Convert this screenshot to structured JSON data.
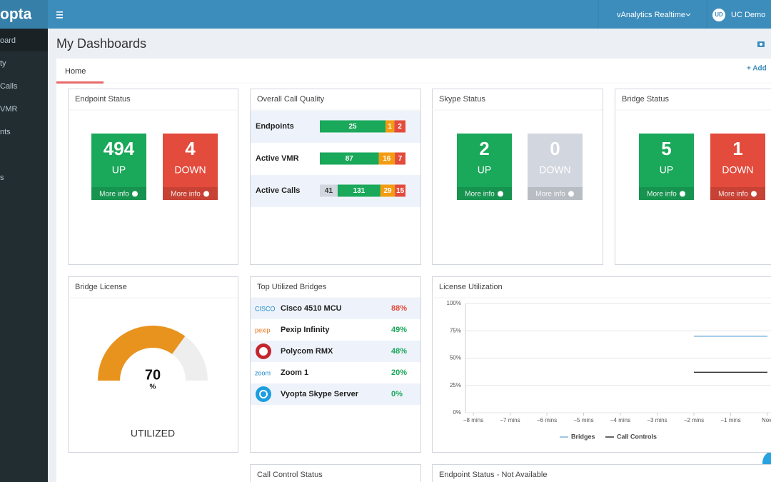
{
  "topbar": {
    "logo": "opta",
    "app_menu": "vAnalytics Realtime",
    "user_initials": "UD",
    "user_name": "UC Demo"
  },
  "sidebar": {
    "items": [
      "oard",
      "ty",
      "Calls",
      "VMR",
      "nts",
      "s"
    ]
  },
  "page": {
    "title": "My Dashboards",
    "tab": "Home",
    "add_button": "+ Add"
  },
  "endpoint_status": {
    "title": "Endpoint Status",
    "tiles": [
      {
        "count": 494,
        "label": "UP",
        "link": "More info",
        "color": "#1aa85a"
      },
      {
        "count": 4,
        "label": "DOWN",
        "link": "More info",
        "color": "#e34b3c"
      }
    ]
  },
  "call_quality": {
    "title": "Overall Call Quality",
    "rows": [
      {
        "label": "Endpoints",
        "segments": [
          {
            "value": 25,
            "color": "#1aa85a"
          },
          {
            "value": 1,
            "color": "#f39c12"
          },
          {
            "value": 2,
            "color": "#e34b3c"
          }
        ]
      },
      {
        "label": "Active VMR",
        "segments": [
          {
            "value": 87,
            "color": "#1aa85a"
          },
          {
            "value": 16,
            "color": "#f39c12"
          },
          {
            "value": 7,
            "color": "#e34b3c"
          }
        ]
      },
      {
        "label": "Active Calls",
        "segments": [
          {
            "value": 41,
            "color": "#d2d6de"
          },
          {
            "value": 131,
            "color": "#1aa85a"
          },
          {
            "value": 29,
            "color": "#f39c12"
          },
          {
            "value": 15,
            "color": "#e34b3c"
          }
        ]
      }
    ]
  },
  "skype_status": {
    "title": "Skype Status",
    "tiles": [
      {
        "count": 2,
        "label": "UP",
        "link": "More info",
        "color": "#1aa85a"
      },
      {
        "count": 0,
        "label": "DOWN",
        "link": "More info",
        "color": "#d2d6de"
      }
    ]
  },
  "bridge_status": {
    "title": "Bridge Status",
    "tiles": [
      {
        "count": 5,
        "label": "UP",
        "link": "More info",
        "color": "#1aa85a"
      },
      {
        "count": 1,
        "label": "DOWN",
        "link": "More info",
        "color": "#e34b3c"
      }
    ]
  },
  "bridge_license": {
    "title": "Bridge License",
    "value": 70,
    "unit": "%",
    "range": [
      0,
      100
    ],
    "label": "UTILIZED",
    "color": "#e8931e"
  },
  "top_bridges": {
    "title": "Top Utilized Bridges",
    "rows": [
      {
        "logo": "CISCO",
        "name": "Cisco 4510 MCU",
        "percent": "88%",
        "color": "#e34b3c"
      },
      {
        "logo": "pexip",
        "name": "Pexip Infinity",
        "percent": "49%",
        "color": "#1aa85a"
      },
      {
        "name": "Polycom RMX",
        "percent": "48%",
        "color": "#1aa85a"
      },
      {
        "logo": "zoom",
        "name": "Zoom 1",
        "percent": "20%",
        "color": "#1aa85a"
      },
      {
        "name": "Vyopta Skype Server",
        "percent": "0%",
        "color": "#1aa85a"
      }
    ]
  },
  "license_utilization": {
    "title": "License Utilization",
    "type": "line",
    "categories": [
      "−8 mins",
      "−7 mins",
      "−6 mins",
      "−5 mins",
      "−4 mins",
      "−3 mins",
      "−2 mins",
      "−1 mins",
      "Now"
    ],
    "series": [
      {
        "name": "Bridges",
        "color": "#7fb6e0",
        "values": [
          null,
          null,
          null,
          null,
          null,
          null,
          70,
          70,
          70
        ]
      },
      {
        "name": "Call Controls",
        "color": "#333333",
        "values": [
          null,
          null,
          null,
          null,
          null,
          null,
          37,
          37,
          37
        ]
      }
    ],
    "ylim": [
      0,
      100
    ],
    "yticks": [
      {
        "value": 0,
        "label": "0%"
      },
      {
        "value": 25,
        "label": "25%"
      },
      {
        "value": 50,
        "label": "50%"
      },
      {
        "value": 75,
        "label": "75%"
      },
      {
        "value": 100,
        "label": "100%"
      }
    ],
    "grid": true
  },
  "bottom": {
    "call_control_title": "Call Control Status",
    "endpoint_na_title": "Endpoint Status - Not Available"
  }
}
